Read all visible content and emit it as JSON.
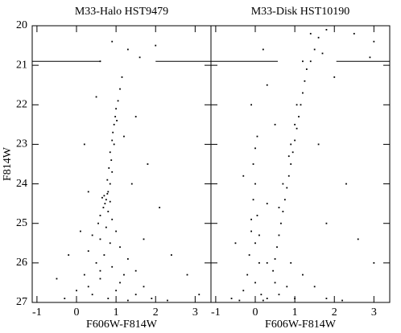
{
  "chart_data": [
    {
      "type": "scatter",
      "title": "M33-Halo HST9479",
      "xlabel": "F606W-F814W",
      "ylabel": "F814W",
      "xlim": [
        -1.12,
        3.4
      ],
      "ylim": [
        27,
        20
      ],
      "xticks": [
        -1,
        0,
        1,
        2,
        3
      ],
      "yticks": [
        20,
        21,
        22,
        23,
        24,
        25,
        26,
        27
      ],
      "ytick_labels": true,
      "color": "#000000",
      "hline": {
        "y": 20.9,
        "gap": [
          0.6,
          2.0
        ]
      },
      "x": [
        1.15,
        1.1,
        1.05,
        1.0,
        0.98,
        0.95,
        1.02,
        0.92,
        0.9,
        0.95,
        0.85,
        0.88,
        0.82,
        0.9,
        0.78,
        0.85,
        0.8,
        0.7,
        0.75,
        0.65,
        0.85,
        0.72,
        0.78,
        0.68,
        0.8,
        0.6,
        0.9,
        0.55,
        0.75,
        1.0,
        0.4,
        0.6,
        0.85,
        1.1,
        0.3,
        0.7,
        1.3,
        0.5,
        0.9,
        1.5,
        0.2,
        0.6,
        1.1,
        1.7,
        0.0,
        0.4,
        0.8,
        1.3,
        1.9,
        -0.3,
        2.3,
        0.3,
        1.0,
        1.5,
        0.6,
        1.2,
        1.3,
        1.6,
        0.5,
        1.5,
        0.2,
        1.8,
        0.3,
        2.1,
        1.4,
        0.1,
        2.4,
        1.7,
        2.8,
        3.1,
        -0.5,
        2.0,
        0.9,
        0.6,
        -0.2,
        1.2
      ],
      "values": [
        21.3,
        21.6,
        21.9,
        22.1,
        22.3,
        22.5,
        22.4,
        22.7,
        22.9,
        23.0,
        23.2,
        23.4,
        23.6,
        23.7,
        23.9,
        24.0,
        24.2,
        24.3,
        24.4,
        24.35,
        24.45,
        24.5,
        24.25,
        24.6,
        24.7,
        24.8,
        24.9,
        25.0,
        25.1,
        25.2,
        25.3,
        25.4,
        25.5,
        25.6,
        25.7,
        25.8,
        25.9,
        26.0,
        26.1,
        26.2,
        26.3,
        26.4,
        26.5,
        26.6,
        26.7,
        26.8,
        26.9,
        26.95,
        26.9,
        26.9,
        26.95,
        26.6,
        26.7,
        26.8,
        26.2,
        26.3,
        20.6,
        20.8,
        21.8,
        22.3,
        23.0,
        23.5,
        24.2,
        24.6,
        24.0,
        25.2,
        25.8,
        25.4,
        26.3,
        26.8,
        26.4,
        20.5,
        20.4,
        20.9,
        25.8,
        22.8
      ]
    },
    {
      "type": "scatter",
      "title": "M33-Disk HST10190",
      "xlabel": "F606W-F814W",
      "xlim": [
        -1.12,
        3.4
      ],
      "ylim": [
        27,
        20
      ],
      "xticks": [
        -1,
        0,
        1,
        2,
        3
      ],
      "yticks": [
        20,
        21,
        22,
        23,
        24,
        25,
        26,
        27
      ],
      "ytick_labels": false,
      "color": "#000000",
      "hline": {
        "y": 20.9,
        "gap": [
          0.57,
          2.05
        ]
      },
      "x": [
        0.0,
        -0.05,
        0.05,
        -0.1,
        0.0,
        -0.15,
        0.1,
        -0.2,
        0.0,
        -0.3,
        0.15,
        -0.4,
        0.2,
        -0.1,
        0.1,
        -0.05,
        0.05,
        -0.1,
        0.0,
        1.5,
        1.4,
        1.3,
        1.25,
        1.2,
        1.15,
        1.1,
        1.05,
        1.0,
        0.95,
        0.9,
        0.85,
        0.8,
        0.75,
        0.7,
        0.65,
        0.6,
        0.55,
        0.5,
        0.45,
        0.5,
        0.6,
        1.05,
        1.0,
        0.9,
        0.85,
        0.7,
        0.6,
        1.2,
        1.6,
        1.8,
        1.4,
        1.7,
        0.9,
        1.2,
        1.5,
        1.8,
        2.2,
        0.3,
        0.8,
        1.0,
        -0.6,
        0.3,
        2.5,
        3.0,
        0.3,
        0.5,
        2.0,
        -0.3,
        1.6,
        2.3,
        0.3,
        2.6,
        3.0,
        -0.5,
        1.8,
        2.9,
        0.2
      ],
      "values": [
        24.0,
        24.4,
        24.8,
        25.2,
        25.5,
        25.8,
        26.0,
        26.3,
        26.5,
        26.7,
        26.8,
        26.95,
        26.95,
        24.9,
        25.3,
        23.5,
        22.8,
        22.0,
        23.1,
        20.6,
        20.9,
        21.1,
        21.4,
        21.7,
        22.0,
        22.3,
        22.6,
        22.9,
        23.2,
        23.5,
        23.8,
        24.1,
        24.4,
        24.7,
        25.0,
        25.3,
        25.6,
        25.9,
        26.2,
        26.5,
        26.8,
        22.0,
        22.5,
        23.0,
        23.3,
        24.0,
        24.6,
        20.9,
        20.3,
        20.1,
        20.2,
        20.7,
        26.0,
        26.3,
        26.6,
        26.9,
        26.95,
        26.0,
        26.6,
        26.9,
        26.9,
        26.9,
        20.2,
        20.4,
        21.5,
        22.5,
        21.3,
        23.8,
        23.0,
        24.0,
        24.5,
        25.4,
        26.0,
        25.5,
        25.0,
        20.8,
        20.6
      ]
    }
  ]
}
